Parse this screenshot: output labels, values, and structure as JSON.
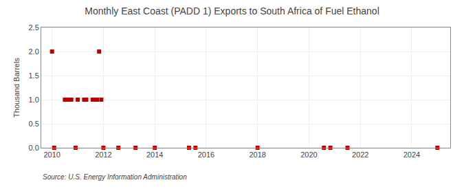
{
  "chart_data": {
    "type": "scatter",
    "title": "Monthly East Coast (PADD 1) Exports to South Africa of Fuel Ethanol",
    "ylabel": "Thousand Barrels",
    "annotations": [
      "Source: U.S. Energy Information Administration"
    ],
    "x": [
      2010.0,
      2010.083,
      2010.5,
      2010.583,
      2010.667,
      2010.75,
      2010.917,
      2011.0,
      2011.25,
      2011.333,
      2011.583,
      2011.667,
      2011.75,
      2011.833,
      2011.917,
      2012.0,
      2012.583,
      2013.25,
      2014.0,
      2015.333,
      2015.583,
      2018.0,
      2020.583,
      2020.833,
      2021.5,
      2025.0
    ],
    "values": [
      2.0,
      0.0,
      1.0,
      1.0,
      1.0,
      1.0,
      0.0,
      1.0,
      1.0,
      1.0,
      1.0,
      1.0,
      1.0,
      2.0,
      1.0,
      0.0,
      0.0,
      0.0,
      0.0,
      0.0,
      0.0,
      0.0,
      0.0,
      0.0,
      0.0,
      0.0
    ],
    "color": "#bb0000",
    "marker": "square",
    "xlim": [
      2009.58,
      2025.5
    ],
    "ylim": [
      0.0,
      2.5
    ],
    "xticks": [
      2010,
      2012,
      2014,
      2016,
      2018,
      2020,
      2022,
      2024
    ],
    "yticks": [
      {
        "value": 0.0,
        "label": "0.0"
      },
      0.5,
      {
        "value": 1.0,
        "label": "1.0"
      },
      1.5,
      {
        "value": 2.0,
        "label": "2.0"
      },
      2.5
    ],
    "grid": true
  }
}
